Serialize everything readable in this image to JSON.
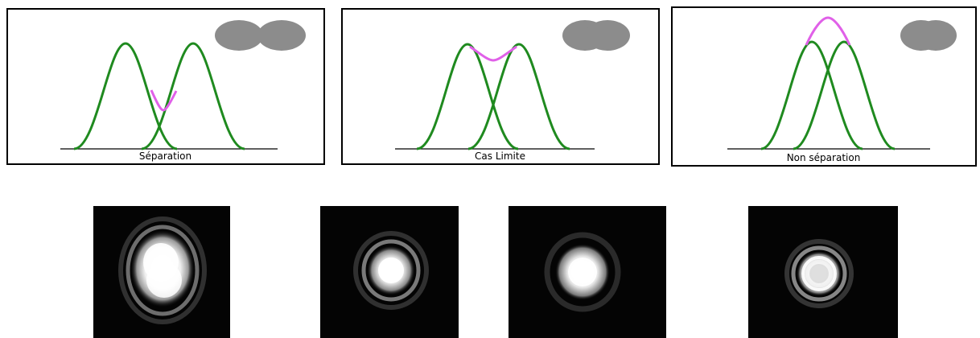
{
  "panels": [
    {
      "caption": "Séparation",
      "case": "separated",
      "separation_fwhm_ratio": 1.4
    },
    {
      "caption": "Cas Limite",
      "case": "limit",
      "separation_fwhm_ratio": 1.0
    },
    {
      "caption": "Non séparation",
      "case": "not-separated",
      "separation_fwhm_ratio": 0.7
    }
  ],
  "colors": {
    "individual_curve": "#1f8a1f",
    "sum_curve": "#e060e8",
    "disc": "#8c8c8c",
    "frame": "#000000",
    "photo_background": "#040404"
  },
  "photos": [
    {
      "subject": "airy-pattern-two-sources-separated"
    },
    {
      "subject": "airy-pattern-limit-case-a"
    },
    {
      "subject": "airy-pattern-limit-case-b"
    },
    {
      "subject": "airy-pattern-single-spot"
    }
  ]
}
